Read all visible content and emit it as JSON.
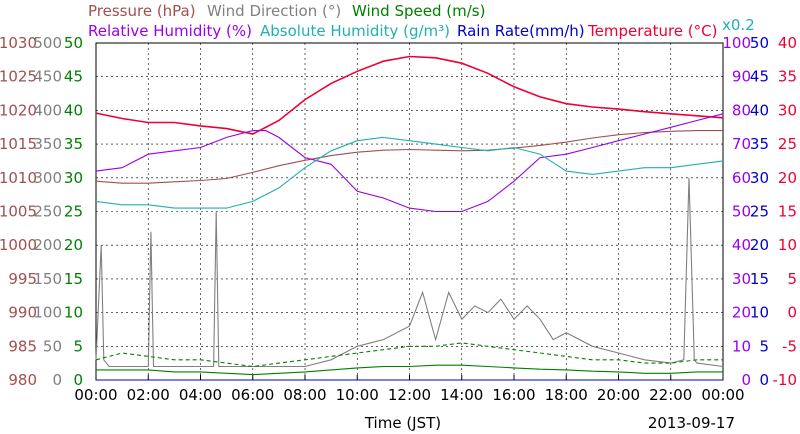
{
  "chart_data": {
    "type": "line",
    "xlabel": "Time (JST)",
    "date": "2013-09-17",
    "x_ticks": [
      "00:00",
      "02:00",
      "04:00",
      "06:00",
      "08:00",
      "10:00",
      "12:00",
      "14:00",
      "16:00",
      "18:00",
      "20:00",
      "22:00",
      "00:00"
    ],
    "x_range_hours": [
      0,
      24
    ],
    "grid": true,
    "legend": {
      "row1": [
        {
          "key": "pressure",
          "label": "Pressure (hPa)",
          "color": "#a05050"
        },
        {
          "key": "wind_direction",
          "label": "Wind Direction (°)",
          "color": "#808080"
        },
        {
          "key": "wind_speed",
          "label": "Wind Speed (m/s)",
          "color": "#008000"
        }
      ],
      "row2": [
        {
          "key": "relative_humidity",
          "label": "Relative Humidity (%)",
          "color": "#9900ee"
        },
        {
          "key": "absolute_humidity",
          "label": "Absolute Humidity (g/m³)",
          "color": "#20b0b0"
        },
        {
          "key": "rain_rate",
          "label": "Rain Rate(mm/h)",
          "color": "#0000cc"
        },
        {
          "key": "temperature",
          "label": "Temperature (°C)",
          "color": "#ee0033"
        }
      ],
      "multiplier": "x0.2"
    },
    "axes": {
      "pressure": {
        "color": "#a05050",
        "range": [
          980,
          1030
        ],
        "ticks": [
          "1030",
          "1025",
          "1020",
          "1015",
          "1010",
          "1005",
          "1000",
          "995",
          "990",
          "985",
          "980"
        ]
      },
      "wind_direction": {
        "color": "#808080",
        "range": [
          0,
          500
        ],
        "ticks": [
          "500",
          "450",
          "400",
          "350",
          "300",
          "250",
          "200",
          "150",
          "100",
          "50",
          "0"
        ]
      },
      "wind_speed": {
        "color": "#008000",
        "range": [
          0,
          50
        ],
        "ticks": [
          "50",
          "45",
          "40",
          "35",
          "30",
          "25",
          "20",
          "15",
          "10",
          "5",
          "0"
        ]
      },
      "humidity": {
        "color": "#9900ee",
        "range": [
          0,
          100
        ],
        "ticks": [
          "100",
          "90",
          "80",
          "70",
          "60",
          "50",
          "40",
          "30",
          "20",
          "10",
          "0"
        ]
      },
      "rain_rate": {
        "color": "#0000cc",
        "range": [
          0,
          50
        ],
        "ticks": [
          "50",
          "45",
          "40",
          "35",
          "30",
          "25",
          "20",
          "15",
          "10",
          "5",
          "0"
        ]
      },
      "temperature": {
        "color": "#ee0033",
        "range": [
          -10,
          40
        ],
        "ticks": [
          "40",
          "35",
          "30",
          "25",
          "20",
          "15",
          "10",
          "5",
          "0",
          "-5",
          "-10"
        ]
      }
    },
    "series": [
      {
        "name": "Pressure (hPa)",
        "axis": "pressure",
        "x": [
          0,
          1,
          2,
          3,
          4,
          5,
          6,
          7,
          8,
          9,
          10,
          11,
          12,
          13,
          14,
          15,
          16,
          17,
          18,
          19,
          20,
          21,
          22,
          23,
          24
        ],
        "y": [
          1009.5,
          1009.2,
          1009.2,
          1009.4,
          1009.6,
          1009.9,
          1010.8,
          1011.8,
          1012.6,
          1013.3,
          1013.8,
          1014.1,
          1014.2,
          1014.1,
          1014.0,
          1014.1,
          1014.4,
          1014.8,
          1015.3,
          1015.9,
          1016.4,
          1016.7,
          1016.9,
          1017.0,
          1017.0
        ]
      },
      {
        "name": "Temperature (°C)",
        "axis": "temperature",
        "x": [
          0,
          1,
          2,
          3,
          4,
          5,
          6,
          7,
          8,
          9,
          10,
          11,
          12,
          13,
          14,
          15,
          16,
          17,
          18,
          19,
          20,
          21,
          22,
          23,
          24
        ],
        "y": [
          29.6,
          28.8,
          28.2,
          28.2,
          27.7,
          27.3,
          26.5,
          28.5,
          31.6,
          34.0,
          35.8,
          37.3,
          38.0,
          37.8,
          37.0,
          35.5,
          33.5,
          32.0,
          31.0,
          30.5,
          30.2,
          29.8,
          29.5,
          29.2,
          28.9
        ]
      },
      {
        "name": "Relative Humidity (%)",
        "axis": "humidity",
        "x": [
          0,
          1,
          2,
          3,
          4,
          5,
          6,
          6.5,
          7,
          8,
          9,
          10,
          11,
          12,
          13,
          14,
          15,
          16,
          17,
          18,
          19,
          20,
          21,
          22,
          23,
          24
        ],
        "y": [
          62,
          63,
          67,
          68,
          69,
          72,
          74,
          74,
          72,
          66,
          64,
          56,
          54,
          51,
          50,
          50,
          53,
          59,
          66,
          67,
          69,
          71,
          73,
          75,
          77,
          79
        ]
      },
      {
        "name": "Absolute Humidity (g/m³)",
        "axis": "humidity",
        "x": [
          0,
          1,
          2,
          3,
          4,
          5,
          6,
          7,
          8,
          9,
          10,
          11,
          12,
          13,
          14,
          15,
          16,
          17,
          18,
          19,
          20,
          21,
          22,
          23,
          24
        ],
        "y": [
          53,
          52,
          52,
          51,
          51,
          51,
          53,
          57,
          63,
          68,
          71,
          72,
          71,
          70,
          69,
          68,
          69,
          67,
          62,
          61,
          62,
          63,
          63,
          64,
          65
        ]
      },
      {
        "name": "Wind Direction (°)",
        "axis": "wind_direction",
        "x": [
          0,
          0.2,
          0.3,
          0.5,
          1,
          2,
          2.1,
          2.2,
          3,
          4,
          4.5,
          4.6,
          4.7,
          5,
          6,
          7,
          8,
          9,
          9.5,
          10,
          11,
          12,
          12.5,
          13,
          13.5,
          14,
          14.5,
          15,
          15.5,
          16,
          16.5,
          17,
          17.5,
          18,
          19,
          20,
          21,
          22,
          22.5,
          22.7,
          22.9,
          23,
          24
        ],
        "y": [
          30,
          200,
          30,
          20,
          20,
          20,
          220,
          20,
          20,
          20,
          20,
          250,
          20,
          20,
          20,
          20,
          20,
          30,
          40,
          50,
          60,
          80,
          130,
          60,
          130,
          90,
          110,
          100,
          120,
          90,
          110,
          90,
          60,
          70,
          50,
          40,
          30,
          25,
          30,
          300,
          30,
          25,
          20
        ]
      },
      {
        "name": "Wind Speed (m/s) dashed",
        "axis": "wind_speed",
        "style": "dashed",
        "x": [
          0,
          1,
          2,
          3,
          4,
          5,
          6,
          7,
          8,
          9,
          10,
          11,
          12,
          13,
          14,
          15,
          16,
          17,
          18,
          19,
          20,
          21,
          22,
          23,
          24
        ],
        "y": [
          3,
          4,
          3.5,
          3,
          3,
          2.5,
          2,
          2.5,
          3,
          3.5,
          4,
          4.5,
          5,
          5,
          5.5,
          5,
          4.5,
          4,
          3.5,
          3,
          3,
          2.5,
          2.5,
          3,
          3
        ]
      },
      {
        "name": "Wind Speed (m/s) solid",
        "axis": "wind_speed",
        "style": "solid",
        "x": [
          0,
          1,
          2,
          3,
          4,
          5,
          6,
          7,
          8,
          9,
          10,
          11,
          12,
          13,
          14,
          15,
          16,
          17,
          18,
          19,
          20,
          21,
          22,
          23,
          24
        ],
        "y": [
          1.5,
          1.5,
          1.5,
          1.2,
          1.2,
          1,
          0.8,
          1,
          1.2,
          1.5,
          1.8,
          2,
          2,
          2.2,
          2.2,
          2,
          1.8,
          1.6,
          1.5,
          1.3,
          1.2,
          1,
          1,
          1.2,
          1.2
        ]
      },
      {
        "name": "Rain Rate (mm/h)",
        "axis": "rain_rate",
        "x": [
          0,
          24
        ],
        "y": [
          0,
          0
        ]
      }
    ]
  }
}
